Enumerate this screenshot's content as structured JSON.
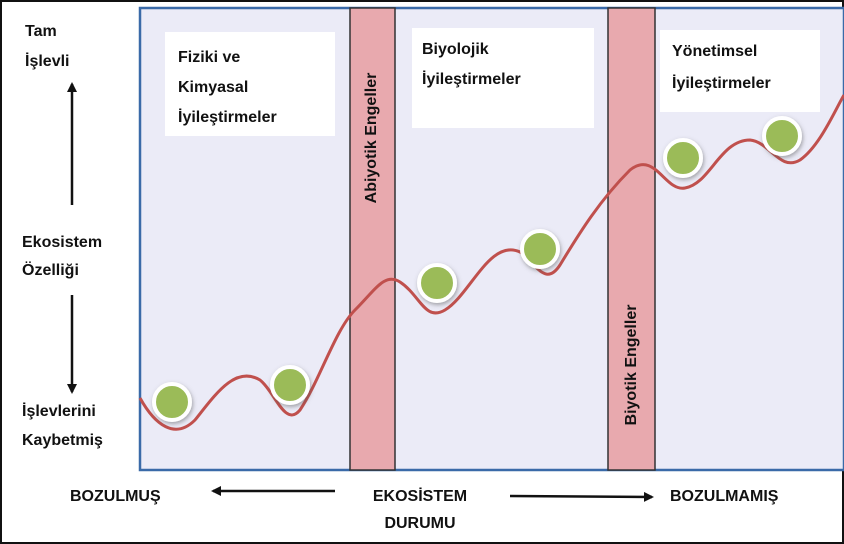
{
  "left_axis": {
    "top": [
      "Tam",
      "İşlevli"
    ],
    "middle": [
      "Ekosistem",
      "Özelliği"
    ],
    "bottom": [
      "İşlevlerini",
      "Kaybetmiş"
    ]
  },
  "stages": [
    {
      "label": [
        "Fiziki ve",
        "Kimyasal",
        "İyileştirmeler"
      ]
    },
    {
      "label": [
        "Biyolojik",
        "İyileştirmeler"
      ]
    },
    {
      "label": [
        "Yönetimsel",
        "İyileştirmeler"
      ]
    }
  ],
  "barriers": [
    "Abiyotik  Engeller",
    "Biyotik  Engeller"
  ],
  "bottom_axis": {
    "left": "BOZULMUŞ",
    "center": [
      "EKOSİSTEM",
      "DURUMU"
    ],
    "right": "BOZULMAMIŞ"
  }
}
